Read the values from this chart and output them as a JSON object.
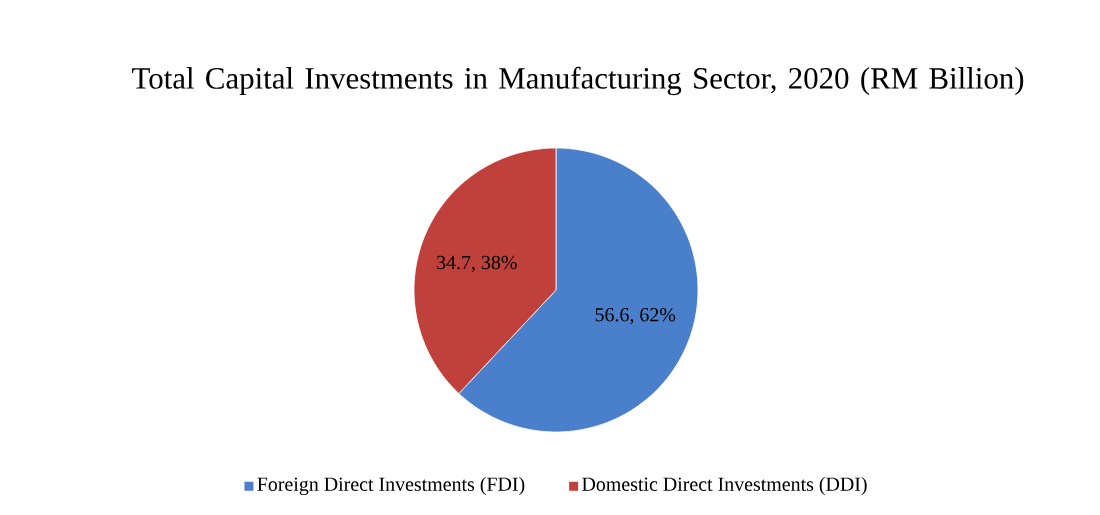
{
  "chart_data": {
    "type": "pie",
    "title": "Total Capital Investments in Manufacturing Sector, 2020 (RM Billion)",
    "categories": [
      "Foreign Direct Investments (FDI)",
      "Domestic Direct Investments (DDI)"
    ],
    "values": [
      56.6,
      34.7
    ],
    "colors": [
      "#4a7fcb",
      "#c0403c"
    ],
    "value_labels": [
      "56.6, 62%",
      "34.7, 38%"
    ],
    "legend": "bottom"
  }
}
